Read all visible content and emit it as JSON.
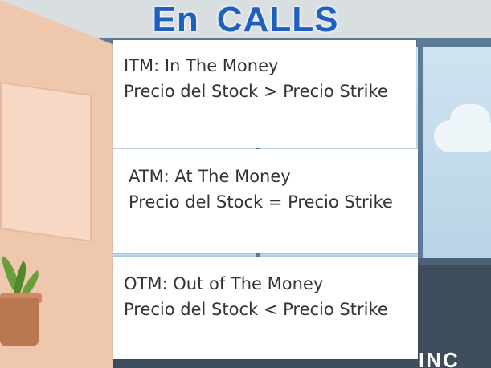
{
  "title": {
    "part1": "En",
    "part2": "CALLS"
  },
  "cards": [
    {
      "line1": "ITM: In The Money",
      "line2": "Precio del Stock > Precio Strike"
    },
    {
      "line1": "ATM: At The Money",
      "line2": "Precio del Stock = Precio Strike"
    },
    {
      "line1": "OTM: Out of The Money",
      "line2": "Precio del Stock < Precio Strike"
    }
  ],
  "colors": {
    "title": "#1f5fbf",
    "card_bg": "#ffffff",
    "card_text": "#333333"
  }
}
